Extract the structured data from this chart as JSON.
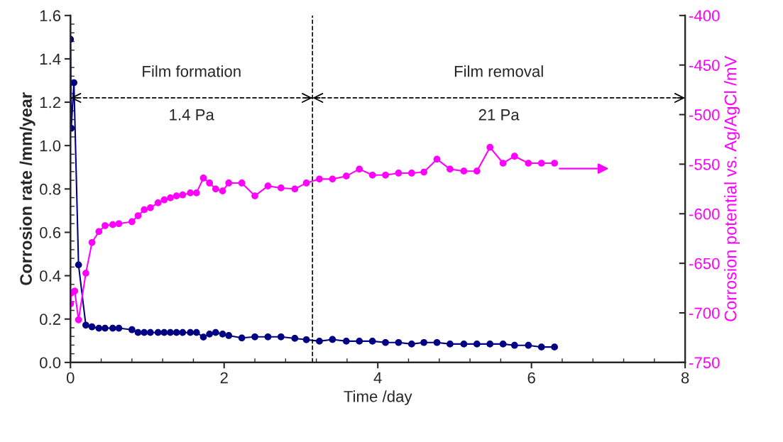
{
  "chart_data": {
    "type": "line",
    "xlabel": "Time /day",
    "ylabel": "Corrosion rate /mm/year",
    "y2label": "Corrosion potential vs. Ag/AgCl /mV",
    "xlim": [
      0,
      8
    ],
    "xticks": [
      0,
      2,
      4,
      6,
      8
    ],
    "ylim": [
      0,
      1.6
    ],
    "yticks": [
      {
        "value": 0,
        "label": "0.0"
      },
      {
        "value": 0.2,
        "label": "0.2"
      },
      {
        "value": 0.4,
        "label": "0.4"
      },
      {
        "value": 0.6,
        "label": "0.6"
      },
      {
        "value": 0.8,
        "label": "0.8"
      },
      {
        "value": 1.0,
        "label": "1.0"
      },
      {
        "value": 1.2,
        "label": "1.2"
      },
      {
        "value": 1.4,
        "label": "1.4"
      },
      {
        "value": 1.6,
        "label": "1.6"
      }
    ],
    "y2lim": [
      -750,
      -400
    ],
    "y2ticks": [
      -750,
      -700,
      -650,
      -600,
      -550,
      -500,
      -450,
      -400
    ],
    "marker": "circle",
    "line_style": "solid",
    "grid": false,
    "legend": false,
    "series": [
      {
        "color": "#000080",
        "x": [
          0,
          0.01,
          0.045,
          0.105,
          0.2,
          0.28,
          0.37,
          0.45,
          0.55,
          0.63,
          0.8,
          0.88,
          0.96,
          1.04,
          1.14,
          1.22,
          1.3,
          1.38,
          1.46,
          1.56,
          1.64,
          1.73,
          1.81,
          1.89,
          1.98,
          2.06,
          2.23,
          2.4,
          2.57,
          2.74,
          2.92,
          3.07,
          3.24,
          3.41,
          3.59,
          3.76,
          3.93,
          4.1,
          4.27,
          4.44,
          4.6,
          4.77,
          4.94,
          5.12,
          5.29,
          5.46,
          5.63,
          5.78,
          5.96,
          6.13,
          6.3
        ],
        "values": [
          1.49,
          1.08,
          1.29,
          0.45,
          0.172,
          0.164,
          0.158,
          0.158,
          0.158,
          0.158,
          0.151,
          0.138,
          0.138,
          0.138,
          0.138,
          0.138,
          0.138,
          0.138,
          0.138,
          0.138,
          0.138,
          0.117,
          0.131,
          0.138,
          0.131,
          0.124,
          0.113,
          0.118,
          0.118,
          0.118,
          0.111,
          0.105,
          0.098,
          0.106,
          0.098,
          0.098,
          0.098,
          0.092,
          0.092,
          0.085,
          0.092,
          0.092,
          0.085,
          0.085,
          0.085,
          0.085,
          0.085,
          0.079,
          0.079,
          0.071,
          0.071
        ]
      },
      {
        "color": "#ff00ff",
        "axis": "y2",
        "x": [
          0,
          0.01,
          0.055,
          0.105,
          0.2,
          0.28,
          0.37,
          0.45,
          0.55,
          0.63,
          0.8,
          0.88,
          0.96,
          1.04,
          1.14,
          1.22,
          1.3,
          1.38,
          1.46,
          1.56,
          1.64,
          1.73,
          1.81,
          1.89,
          1.98,
          2.06,
          2.23,
          2.4,
          2.57,
          2.74,
          2.92,
          3.07,
          3.24,
          3.41,
          3.59,
          3.76,
          3.93,
          4.1,
          4.27,
          4.44,
          4.6,
          4.77,
          4.94,
          5.12,
          5.29,
          5.46,
          5.63,
          5.78,
          5.96,
          6.13,
          6.3
        ],
        "values": [
          -691,
          -680,
          -678,
          -707,
          -660,
          -629,
          -618,
          -612,
          -611,
          -610,
          -608,
          -602,
          -596,
          -594,
          -589,
          -586,
          -584,
          -582,
          -581,
          -579,
          -579,
          -564,
          -569,
          -575,
          -577,
          -569,
          -569,
          -582,
          -572,
          -574,
          -575,
          -569,
          -565,
          -565,
          -562,
          -555,
          -561,
          -561,
          -559,
          -559,
          -558,
          -545,
          -555,
          -557,
          -557,
          -533,
          -549,
          -542,
          -549,
          -549,
          -549
        ]
      }
    ],
    "ref_lines": [
      {
        "axis": "x",
        "value": 3.15,
        "color": "#000000",
        "line_style": "dashed"
      },
      {
        "axis": "y",
        "value": 1.22,
        "color": "#000000",
        "line_style": "dashed"
      }
    ],
    "annotations": [
      "Film formation",
      "1.4 Pa",
      "Film removal",
      "21 Pa"
    ]
  }
}
